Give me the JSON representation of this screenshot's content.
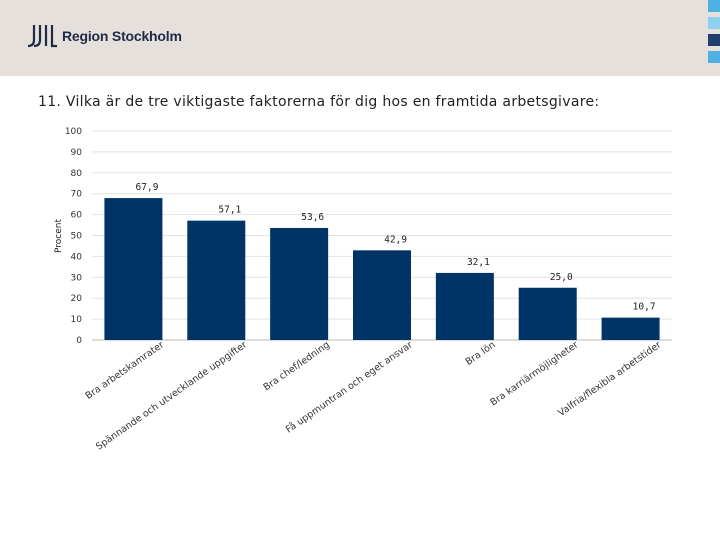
{
  "header": {
    "brand": "Region Stockholm",
    "colors": {
      "background": "#e6e0dc",
      "squares": [
        "#4fb0e2",
        "#8fd0f0",
        "#1f3d6e",
        "#4fb0e2"
      ]
    }
  },
  "page": {
    "title": "11. Vilka är de tre viktigaste faktorerna för dig hos en framtida arbetsgivare:"
  },
  "chart_data": {
    "type": "bar",
    "title": "11. Vilka är de tre viktigaste faktorerna för dig hos en framtida arbetsgivare:",
    "ylabel": "Procent",
    "xlabel": "",
    "ylim": [
      0,
      100
    ],
    "yticks": [
      0,
      10,
      20,
      30,
      40,
      50,
      60,
      70,
      80,
      90,
      100
    ],
    "grid": true,
    "categories": [
      "Bra arbetskamrater",
      "Spännande och utvecklande uppgifter",
      "Bra chef/ledning",
      "Få uppmuntran och eget ansvar",
      "Bra lön",
      "Bra karriärmöjligheter",
      "Valfria/flexibla arbetstider"
    ],
    "values": [
      67.9,
      57.1,
      53.6,
      42.9,
      32.1,
      25.0,
      10.7
    ],
    "value_labels": [
      "67,9",
      "57,1",
      "53,6",
      "42,9",
      "32,1",
      "25,0",
      "10,7"
    ],
    "bar_color": "#003366"
  }
}
